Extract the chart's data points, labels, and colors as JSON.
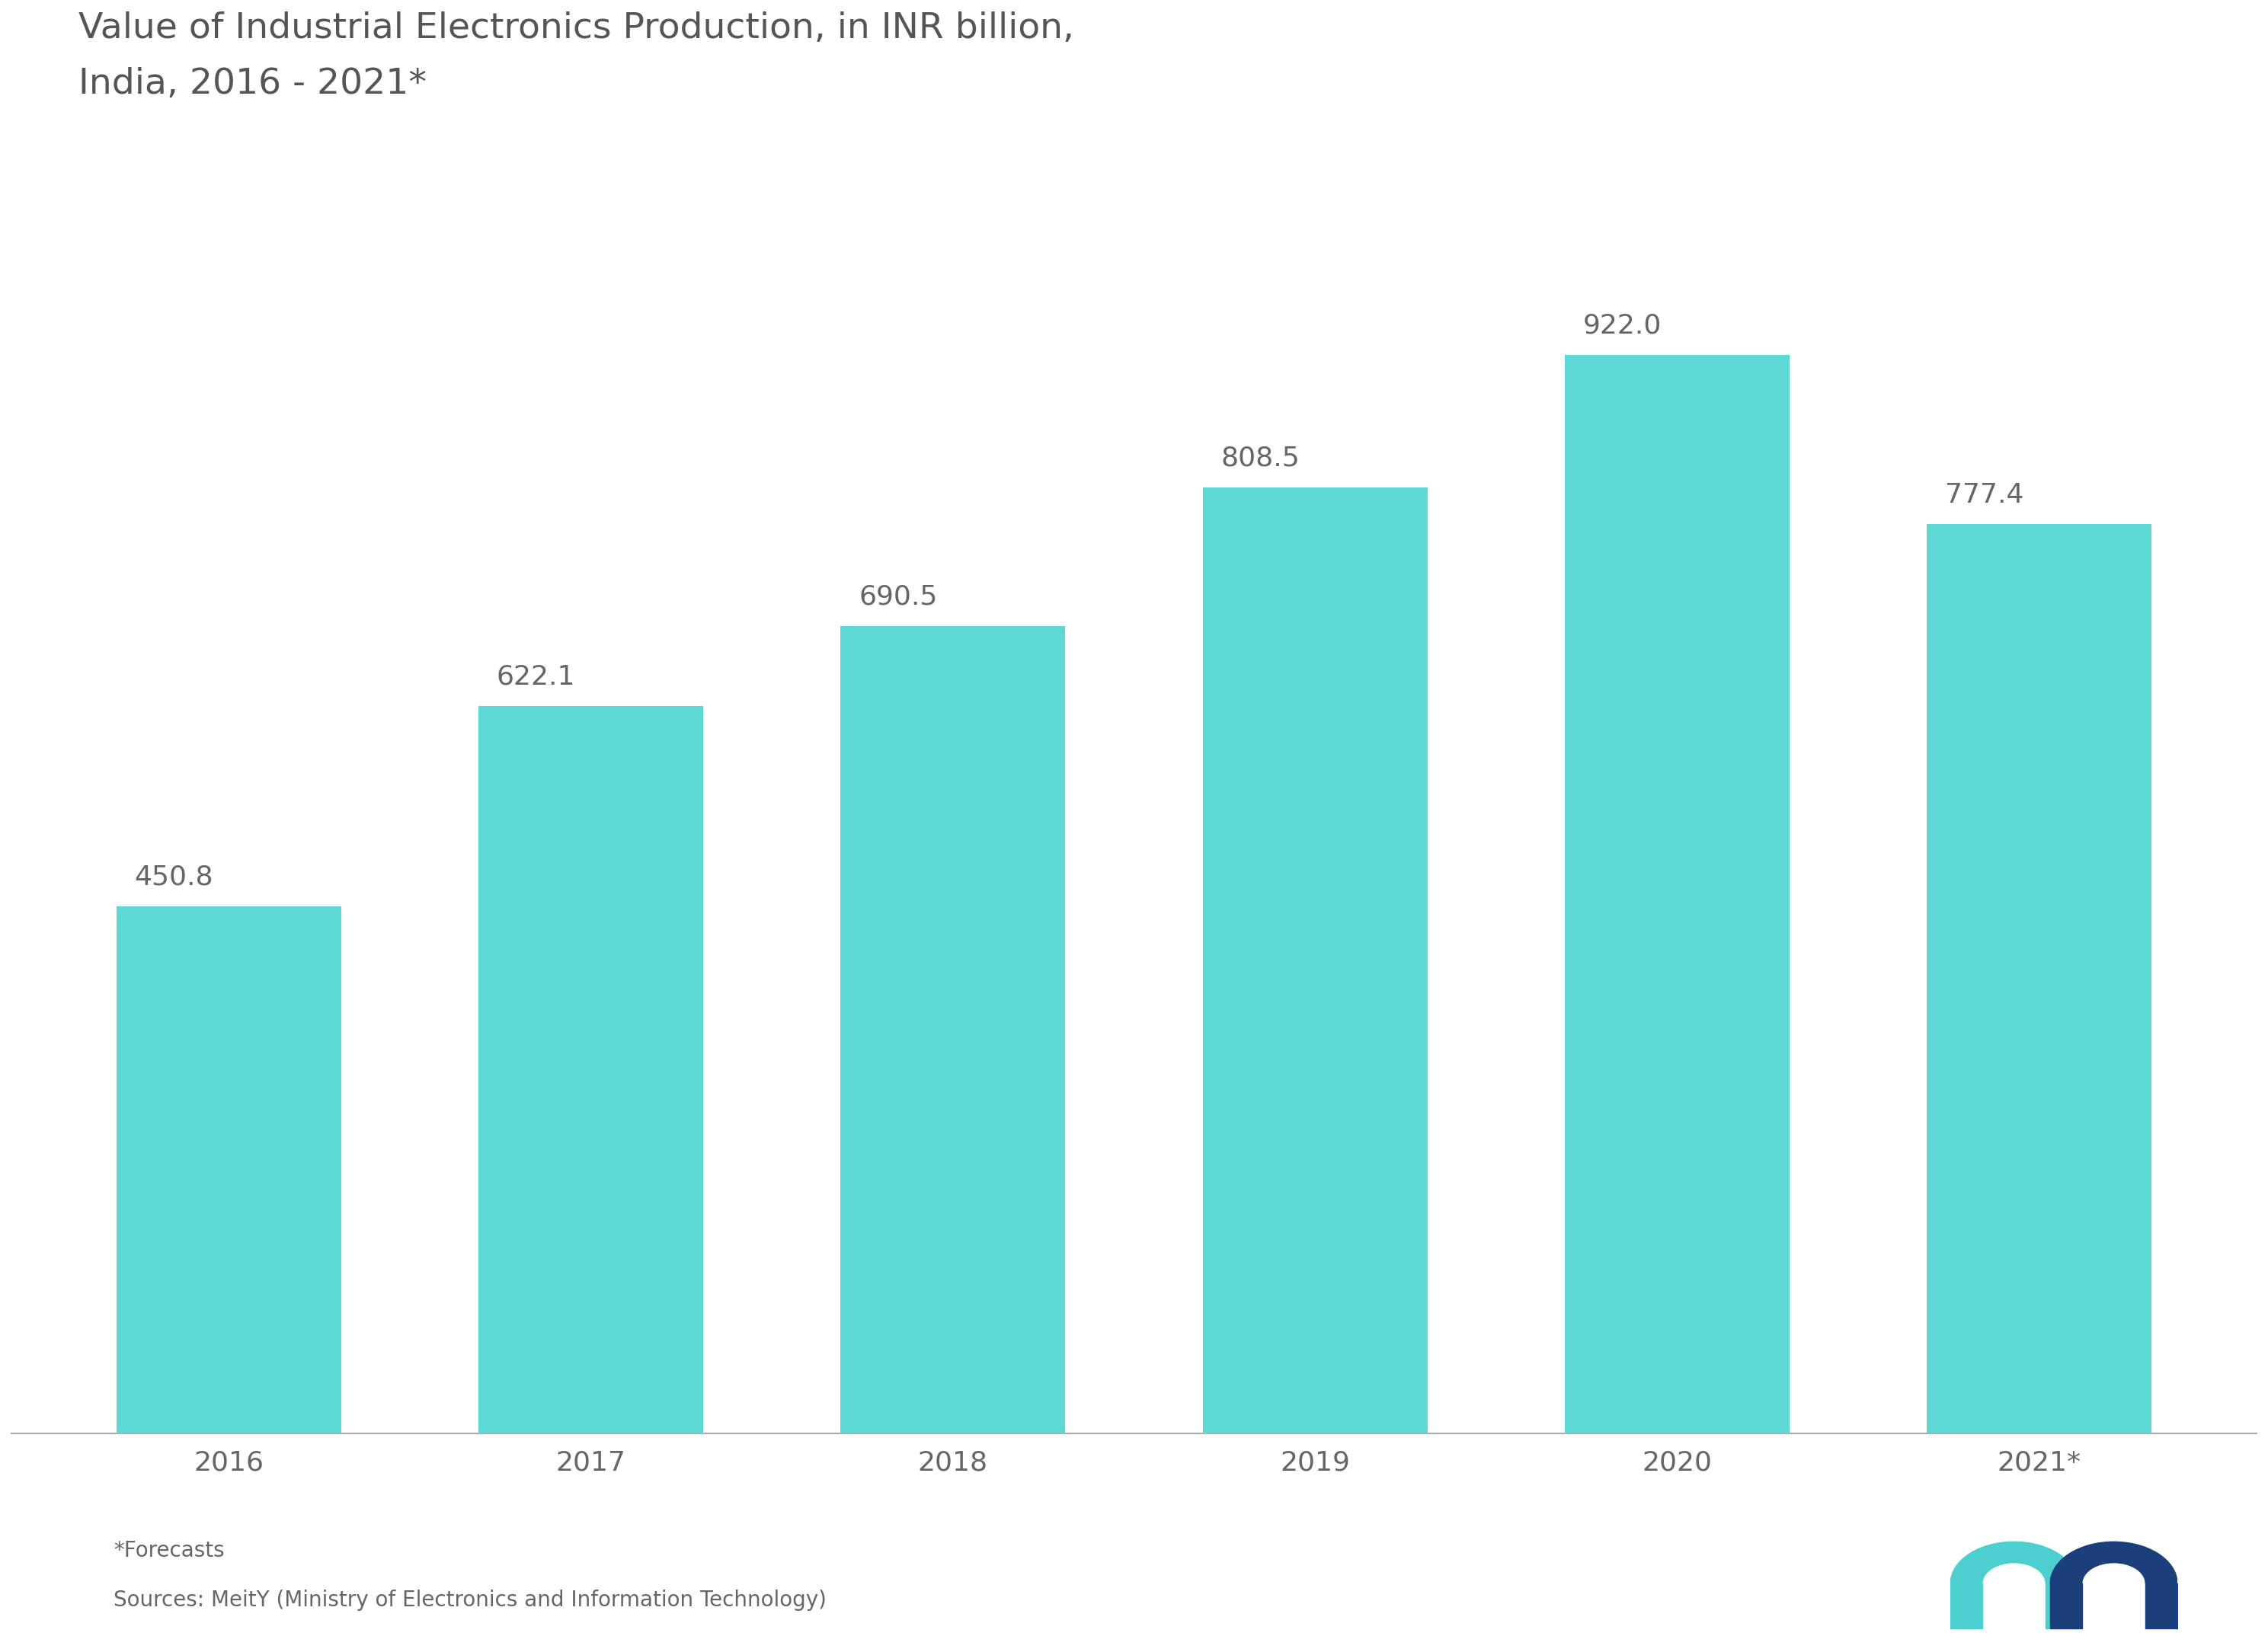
{
  "title_line1": "Value of Industrial Electronics Production, in INR billion,",
  "title_line2": "India, 2016 - 2021*",
  "categories": [
    "2016",
    "2017",
    "2018",
    "2019",
    "2020",
    "2021*"
  ],
  "values": [
    450.8,
    622.1,
    690.5,
    808.5,
    922.0,
    777.4
  ],
  "bar_color": "#5DD8D4",
  "background_color": "#ffffff",
  "text_color": "#666666",
  "title_color": "#555555",
  "label_color": "#666666",
  "footnote_line1": "*Forecasts",
  "footnote_line2": "Sources: MeitY (Ministry of Electronics and Information Technology)",
  "bar_width": 0.62,
  "ylim": [
    0,
    1100
  ],
  "title_fontsize": 34,
  "label_fontsize": 26,
  "tick_fontsize": 26,
  "footnote_fontsize": 20,
  "logo_bar_color": "#4DCCCC",
  "logo_arch_color": "#2255AA"
}
